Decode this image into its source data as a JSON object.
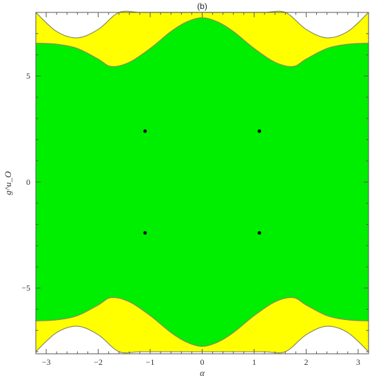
{
  "chart_data": {
    "type": "area",
    "title": "(b)",
    "xlabel": "α",
    "ylabel": "g^u_O",
    "xlim": [
      -3.2,
      3.2
    ],
    "ylim": [
      -8.1,
      8.0
    ],
    "xticks": [
      -3,
      -2,
      -1,
      0,
      1,
      2,
      3
    ],
    "yticks": [
      -5,
      0,
      5
    ],
    "xtick_labels": [
      "−3",
      "−2",
      "−1",
      "0",
      "1",
      "2",
      "3"
    ],
    "ytick_labels": [
      "−5",
      "0",
      "5"
    ],
    "grid": false,
    "regions": [
      {
        "color": "#ffff00",
        "upper_boundary": {
          "x": [
            -3.2,
            -2.8,
            -2.4,
            -2.0,
            -1.6,
            -1.2,
            -0.8,
            -0.4,
            0,
            0.4,
            0.8,
            1.2,
            1.6,
            2.0,
            2.4,
            2.8,
            3.2
          ],
          "y": [
            8.0,
            7.1,
            6.8,
            7.2,
            8.0,
            8.0,
            8.0,
            8.0,
            8.0,
            8.0,
            8.0,
            8.0,
            8.0,
            7.2,
            6.8,
            7.1,
            8.0
          ]
        },
        "lower_boundary": {
          "x": [
            -3.2,
            -2.8,
            -2.4,
            -2.0,
            -1.6,
            -1.2,
            -0.8,
            -0.4,
            0,
            0.4,
            0.8,
            1.2,
            1.6,
            2.0,
            2.4,
            2.8,
            3.2
          ],
          "y": [
            -8.0,
            -7.1,
            -6.8,
            -7.2,
            -8.0,
            -8.0,
            -8.0,
            -8.0,
            -8.0,
            -8.0,
            -8.0,
            -8.0,
            -8.0,
            -7.2,
            -6.8,
            -7.1,
            -8.0
          ]
        }
      },
      {
        "color": "#00ee00",
        "upper_boundary": {
          "x": [
            -3.2,
            -2.8,
            -2.4,
            -2.0,
            -1.75,
            -1.4,
            -1.0,
            -0.6,
            -0.3,
            0,
            0.3,
            0.6,
            1.0,
            1.4,
            1.75,
            2.0,
            2.4,
            2.8,
            3.2
          ],
          "y": [
            6.55,
            6.5,
            6.3,
            5.8,
            5.45,
            5.65,
            6.3,
            7.1,
            7.55,
            7.75,
            7.55,
            7.1,
            6.3,
            5.65,
            5.45,
            5.8,
            6.3,
            6.5,
            6.55
          ]
        },
        "lower_boundary": {
          "x": [
            -3.2,
            -2.8,
            -2.4,
            -2.0,
            -1.75,
            -1.4,
            -1.0,
            -0.6,
            -0.3,
            0,
            0.3,
            0.6,
            1.0,
            1.4,
            1.75,
            2.0,
            2.4,
            2.8,
            3.2
          ],
          "y": [
            -6.55,
            -6.5,
            -6.3,
            -5.8,
            -5.45,
            -5.65,
            -6.3,
            -7.1,
            -7.55,
            -7.75,
            -7.55,
            -7.1,
            -6.3,
            -5.65,
            -5.45,
            -5.8,
            -6.3,
            -6.5,
            -6.55
          ]
        }
      }
    ],
    "points": {
      "x": [
        -1.1,
        1.1,
        -1.1,
        1.1
      ],
      "y": [
        2.4,
        2.4,
        -2.4,
        -2.4
      ],
      "color": "#000000"
    }
  }
}
